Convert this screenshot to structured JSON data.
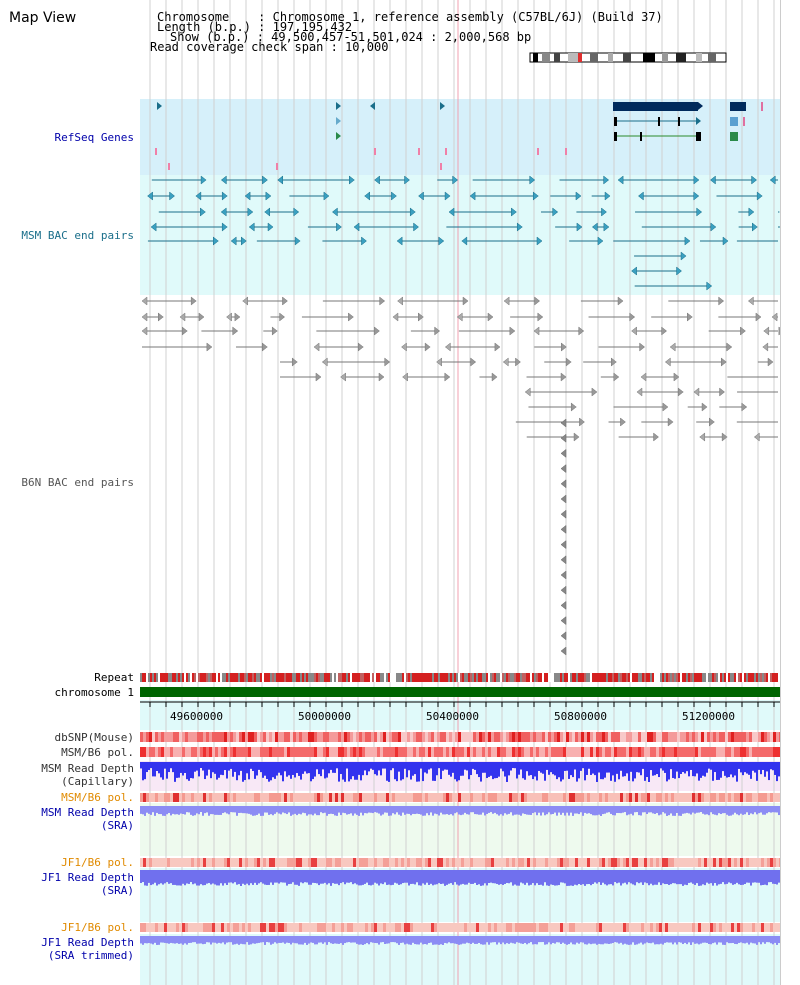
{
  "title": "Map View",
  "header": {
    "chromosome_label": "Chromosome",
    "chromosome_value": "Chromosome 1, reference assembly (C57BL/6J) (Build 37)",
    "length_label": "Length (b.p.)",
    "length_value": "197,195,432",
    "show_label": "Show (b.p.)",
    "show_value": "49,500,457-51,501,024 : 2,000,568 bp",
    "coverage_label": "Read coverage check span",
    "coverage_value": "10,000"
  },
  "tracks": {
    "refseq": "RefSeq Genes",
    "msm_bac": "MSM BAC end pairs",
    "b6n_bac": "B6N BAC end pairs",
    "repeat": "Repeat",
    "chromosome": "chromosome 1",
    "dbsnp": "dbSNP(Mouse)",
    "msm_b6_pol_1": "MSM/B6 pol.",
    "msm_read_depth_cap_1": "MSM Read Depth",
    "msm_read_depth_cap_2": "(Capillary)",
    "msm_b6_pol_2": "MSM/B6 pol.",
    "msm_read_depth_sra_1": "MSM Read Depth",
    "msm_read_depth_sra_2": "(SRA)",
    "jf1_b6_pol_1": "JF1/B6 pol.",
    "jf1_read_depth_sra_1": "JF1 Read Depth",
    "jf1_read_depth_sra_2": "(SRA)",
    "jf1_b6_pol_2": "JF1/B6 pol.",
    "jf1_read_depth_trim_1": "JF1 Read Depth",
    "jf1_read_depth_trim_2": "(SRA trimmed)"
  },
  "axis": {
    "start": 49500457,
    "end": 51501024,
    "ticks": [
      "49600000",
      "50000000",
      "50400000",
      "50800000",
      "51200000"
    ]
  },
  "colors": {
    "refseq_bg": "#d6f0fa",
    "msm_bg": "#e0fafa",
    "gene_dark": "#002a5c",
    "msm_feature": "#1a6e8a",
    "b6n_feature": "#777777",
    "chromosome_bar": "#006400",
    "pol_red": "#ff3030",
    "depth_blue": "#3333ff",
    "label_blue": "#0000aa",
    "label_orange": "#e08a00"
  }
}
